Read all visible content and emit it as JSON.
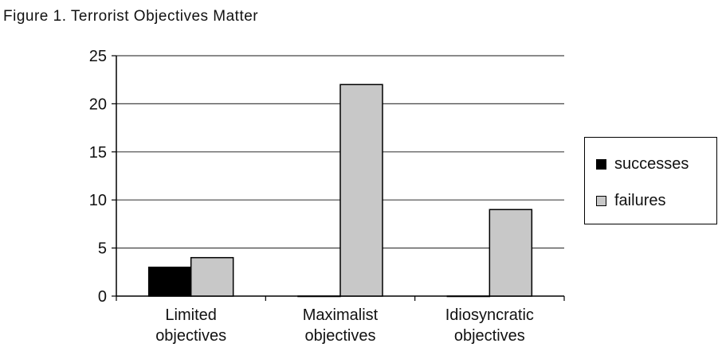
{
  "figure_title": "Figure 1.  Terrorist Objectives Matter",
  "colors": {
    "successes": "#000000",
    "failures": "#c8c8c8",
    "grid": "#444444"
  },
  "chart_data": {
    "type": "bar",
    "title": "Figure 1.  Terrorist Objectives Matter",
    "categories": [
      [
        "Limited",
        "objectives"
      ],
      [
        "Maximalist",
        "objectives"
      ],
      [
        "Idiosyncratic",
        "objectives"
      ]
    ],
    "series": [
      {
        "name": "successes",
        "values": [
          3,
          0,
          0
        ]
      },
      {
        "name": "failures",
        "values": [
          4,
          22,
          9
        ]
      }
    ],
    "xlabel": "",
    "ylabel": "",
    "ylim": [
      0,
      25
    ],
    "yticks": [
      0,
      5,
      10,
      15,
      20,
      25
    ],
    "grid": true,
    "legend_position": "right"
  }
}
